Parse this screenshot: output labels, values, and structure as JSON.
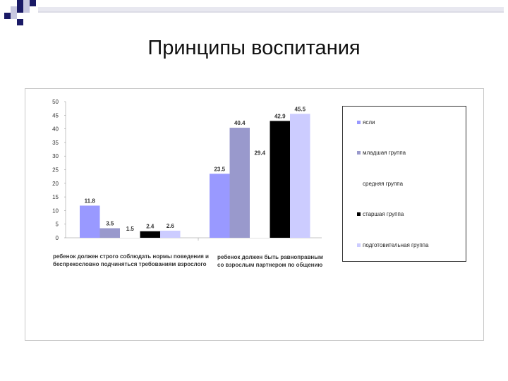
{
  "slide": {
    "title": "Принципы воспитания"
  },
  "colors": {
    "yasli": "#9999ff",
    "mladshaya": "#9999cc",
    "srednyaya": "#ffffff",
    "starshaya": "#000000",
    "podgotovitelnaya": "#ccccff"
  },
  "chart_data": {
    "type": "bar",
    "ylim": [
      0,
      50
    ],
    "yticks": [
      0,
      5,
      10,
      15,
      20,
      25,
      30,
      35,
      40,
      45,
      50
    ],
    "grid": false,
    "legend_position": "right",
    "categories": [
      "ребенок должен строго соблюдать нормы поведения и беспрекословно подчиняться требованиям взрослого",
      "ребенок должен быть равноправным со взрослым партнером по общению"
    ],
    "series": [
      {
        "name": "ясли",
        "color": "#9999ff",
        "values": [
          11.8,
          23.5
        ],
        "labels": [
          "11.8",
          "23.5"
        ]
      },
      {
        "name": "младшая группа",
        "color": "#9999cc",
        "values": [
          3.5,
          40.4
        ],
        "labels": [
          "3.5",
          "40.4"
        ]
      },
      {
        "name": "средняя группа",
        "color": "#ffffff",
        "values": [
          1.5,
          29.4
        ],
        "labels": [
          "1.5",
          "29.4"
        ]
      },
      {
        "name": "старшая группа",
        "color": "#000000",
        "values": [
          2.4,
          42.9
        ],
        "labels": [
          "2.4",
          "42.9"
        ]
      },
      {
        "name": "подготовительная группа",
        "color": "#ccccff",
        "values": [
          2.6,
          45.5
        ],
        "labels": [
          "2.6",
          "45.5"
        ]
      }
    ]
  }
}
